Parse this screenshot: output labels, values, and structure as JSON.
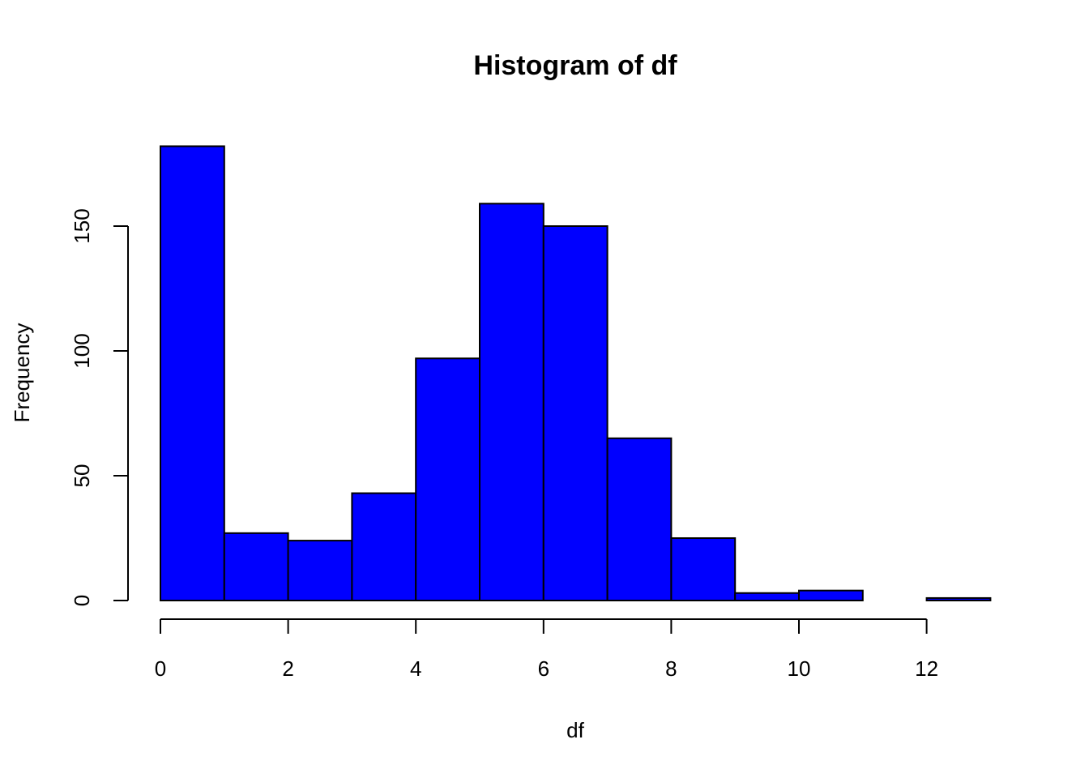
{
  "chart_data": {
    "type": "bar",
    "title": "Histogram of df",
    "xlabel": "df",
    "ylabel": "Frequency",
    "bar_color": "#0000ff",
    "border_color": "#000000",
    "bins": [
      {
        "x0": 0,
        "x1": 1,
        "count": 182
      },
      {
        "x0": 1,
        "x1": 2,
        "count": 27
      },
      {
        "x0": 2,
        "x1": 3,
        "count": 24
      },
      {
        "x0": 3,
        "x1": 4,
        "count": 43
      },
      {
        "x0": 4,
        "x1": 5,
        "count": 97
      },
      {
        "x0": 5,
        "x1": 6,
        "count": 159
      },
      {
        "x0": 6,
        "x1": 7,
        "count": 150
      },
      {
        "x0": 7,
        "x1": 8,
        "count": 65
      },
      {
        "x0": 8,
        "x1": 9,
        "count": 25
      },
      {
        "x0": 9,
        "x1": 10,
        "count": 3
      },
      {
        "x0": 10,
        "x1": 11,
        "count": 4
      },
      {
        "x0": 11,
        "x1": 12,
        "count": 0
      },
      {
        "x0": 12,
        "x1": 13,
        "count": 1
      }
    ],
    "x_ticks": [
      0,
      2,
      4,
      6,
      8,
      10,
      12
    ],
    "x_tick_labels": [
      "0",
      "2",
      "4",
      "6",
      "8",
      "10",
      "12"
    ],
    "y_ticks": [
      0,
      50,
      100,
      150
    ],
    "y_tick_labels": [
      "0",
      "50",
      "100",
      "150"
    ],
    "xlim": [
      0,
      13
    ],
    "ylim": [
      0,
      182
    ],
    "grid": false,
    "legend": "none"
  }
}
